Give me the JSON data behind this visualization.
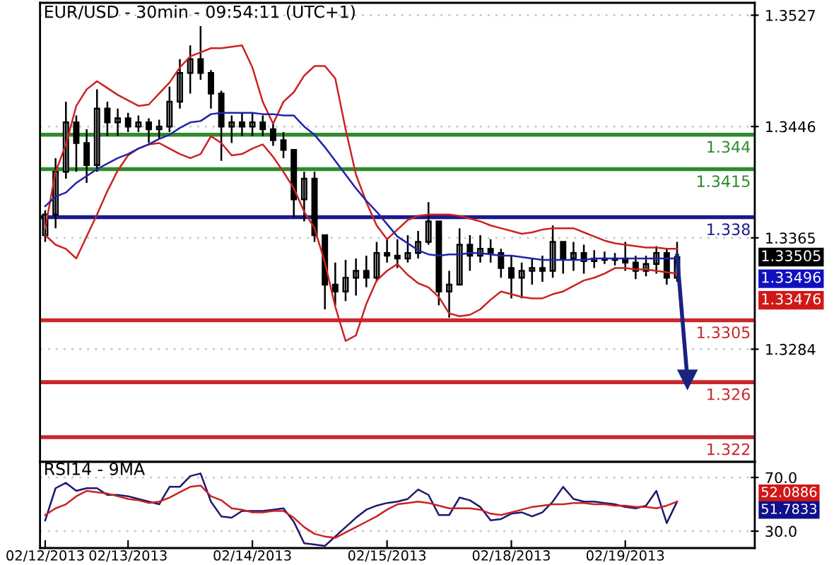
{
  "chart_data": [
    {
      "type": "candlestick",
      "title": "EUR/USD - 30min - 09:54:11 (UTC+1)",
      "categories": [
        null,
        null,
        null,
        null,
        null,
        null,
        null,
        null,
        null,
        null,
        null,
        null,
        null,
        null,
        null,
        null,
        null,
        null,
        null,
        null,
        null,
        null,
        null,
        null,
        null,
        null,
        null,
        null,
        null,
        null,
        null,
        null,
        null,
        null,
        null,
        null,
        null,
        null,
        null,
        null,
        null,
        null,
        null,
        null,
        null,
        null,
        null,
        null,
        null,
        null,
        null,
        null,
        null,
        null,
        null,
        null,
        null,
        null,
        null,
        null,
        null,
        null,
        null,
        null,
        null,
        null,
        null,
        null,
        null
      ],
      "ohlc": [
        [
          1.3367,
          1.3385,
          1.3362,
          1.3382
        ],
        [
          1.3382,
          1.3423,
          1.3372,
          1.3413
        ],
        [
          1.3413,
          1.3464,
          1.3408,
          1.3449
        ],
        [
          1.3449,
          1.3454,
          1.3413,
          1.3434
        ],
        [
          1.3434,
          1.3444,
          1.3405,
          1.3418
        ],
        [
          1.3418,
          1.3473,
          1.3413,
          1.3459
        ],
        [
          1.3459,
          1.3464,
          1.3439,
          1.3449
        ],
        [
          1.3449,
          1.3459,
          1.3439,
          1.3452
        ],
        [
          1.3452,
          1.3456,
          1.3442,
          1.3446
        ],
        [
          1.3446,
          1.3454,
          1.3442,
          1.3449
        ],
        [
          1.3449,
          1.3452,
          1.3434,
          1.3444
        ],
        [
          1.3444,
          1.3451,
          1.3437,
          1.3446
        ],
        [
          1.3446,
          1.3475,
          1.3442,
          1.3464
        ],
        [
          1.3464,
          1.3495,
          1.3459,
          1.3485
        ],
        [
          1.3485,
          1.3505,
          1.347,
          1.3495
        ],
        [
          1.3495,
          1.3519,
          1.348,
          1.3485
        ],
        [
          1.3485,
          1.3487,
          1.3459,
          1.347
        ],
        [
          1.347,
          1.3472,
          1.3421,
          1.3446
        ],
        [
          1.3446,
          1.3454,
          1.3434,
          1.3449
        ],
        [
          1.3449,
          1.3456,
          1.3439,
          1.3446
        ],
        [
          1.3446,
          1.3456,
          1.3439,
          1.3449
        ],
        [
          1.3449,
          1.3454,
          1.3439,
          1.3444
        ],
        [
          1.3444,
          1.3449,
          1.3432,
          1.3436
        ],
        [
          1.3436,
          1.3442,
          1.3423,
          1.3429
        ],
        [
          1.3429,
          1.3429,
          1.338,
          1.3393
        ],
        [
          1.3393,
          1.3413,
          1.3377,
          1.3408
        ],
        [
          1.3408,
          1.3413,
          1.3362,
          1.3367
        ],
        [
          1.3367,
          1.3367,
          1.3313,
          1.3331
        ],
        [
          1.3331,
          1.3347,
          1.3316,
          1.3326
        ],
        [
          1.3326,
          1.3349,
          1.3319,
          1.3336
        ],
        [
          1.3336,
          1.335,
          1.3323,
          1.3341
        ],
        [
          1.3341,
          1.3352,
          1.3329,
          1.3336
        ],
        [
          1.3336,
          1.3362,
          1.3333,
          1.3354
        ],
        [
          1.3354,
          1.3364,
          1.3347,
          1.3352
        ],
        [
          1.3352,
          1.3364,
          1.3343,
          1.335
        ],
        [
          1.335,
          1.3367,
          1.3347,
          1.3354
        ],
        [
          1.3354,
          1.337,
          1.335,
          1.3362
        ],
        [
          1.3362,
          1.3391,
          1.336,
          1.3377
        ],
        [
          1.3377,
          1.3377,
          1.3316,
          1.3326
        ],
        [
          1.3326,
          1.3341,
          1.3307,
          1.3331
        ],
        [
          1.3331,
          1.3372,
          1.3331,
          1.336
        ],
        [
          1.336,
          1.3367,
          1.3341,
          1.3352
        ],
        [
          1.3352,
          1.3367,
          1.3347,
          1.3357
        ],
        [
          1.3357,
          1.3364,
          1.3347,
          1.3354
        ],
        [
          1.3354,
          1.3357,
          1.3336,
          1.3343
        ],
        [
          1.3343,
          1.3352,
          1.3321,
          1.3336
        ],
        [
          1.3336,
          1.3347,
          1.3321,
          1.3341
        ],
        [
          1.3341,
          1.335,
          1.3331,
          1.3343
        ],
        [
          1.3343,
          1.3352,
          1.3333,
          1.3341
        ],
        [
          1.3341,
          1.3374,
          1.3336,
          1.3362
        ],
        [
          1.3362,
          1.3362,
          1.3339,
          1.335
        ],
        [
          1.335,
          1.3362,
          1.3341,
          1.3354
        ],
        [
          1.3354,
          1.336,
          1.3339,
          1.3348
        ],
        [
          1.3348,
          1.3356,
          1.3343,
          1.335
        ],
        [
          1.335,
          1.3355,
          1.3346,
          1.3349
        ],
        [
          1.3349,
          1.3354,
          1.3345,
          1.335
        ],
        [
          1.335,
          1.3362,
          1.3341,
          1.3347
        ],
        [
          1.3347,
          1.3352,
          1.3335,
          1.3341
        ],
        [
          1.3341,
          1.3352,
          1.3337,
          1.3346
        ],
        [
          1.3346,
          1.3359,
          1.3339,
          1.3354
        ],
        [
          1.3354,
          1.3357,
          1.3331,
          1.3336
        ],
        [
          1.3336,
          1.3362,
          1.3333,
          1.3351
        ],
        null,
        null,
        null,
        null,
        null,
        null,
        null
      ],
      "series": [
        {
          "type": "line",
          "color": "#cc2222",
          "values": [
            1.3372,
            1.3413,
            1.3433,
            1.3461,
            1.3473,
            1.3479,
            1.3474,
            1.3469,
            1.3465,
            1.3461,
            1.3462,
            1.347,
            1.3478,
            1.3489,
            1.3497,
            1.35,
            1.3503,
            1.3503,
            1.3504,
            1.3505,
            1.3489,
            1.3464,
            1.3448,
            1.3464,
            1.3471,
            1.3483,
            1.349,
            1.349,
            1.3481,
            1.3444,
            1.3411,
            1.3391,
            1.3374,
            1.3364,
            1.3371,
            1.3378,
            1.3381,
            1.3382,
            1.3382,
            1.3382,
            1.3381,
            1.3379,
            1.3377,
            1.3374,
            1.3372,
            1.337,
            1.3368,
            1.3369,
            1.3371,
            1.3372,
            1.3372,
            1.3372,
            1.3369,
            1.3366,
            1.3363,
            1.3361,
            1.336,
            1.3359,
            1.3358,
            1.3358,
            1.3357,
            1.3357,
            null,
            null,
            null,
            null,
            null,
            null,
            null
          ]
        },
        {
          "type": "line",
          "color": "#cc2222",
          "values": [
            1.3367,
            1.336,
            1.3357,
            1.335,
            1.3366,
            1.3382,
            1.3399,
            1.3414,
            1.3425,
            1.343,
            1.3433,
            1.3434,
            1.343,
            1.3426,
            1.3423,
            1.3426,
            1.3439,
            1.3434,
            1.3425,
            1.3426,
            1.343,
            1.3433,
            1.3424,
            1.3413,
            1.3401,
            1.3384,
            1.3372,
            1.3347,
            1.3315,
            1.329,
            1.3294,
            1.3317,
            1.3334,
            1.3341,
            1.3346,
            1.3338,
            1.3332,
            1.3329,
            1.3322,
            1.331,
            1.3308,
            1.3309,
            1.3313,
            1.332,
            1.3326,
            1.3324,
            1.3322,
            1.3321,
            1.3321,
            1.3324,
            1.3326,
            1.333,
            1.3334,
            1.3336,
            1.3339,
            1.3343,
            1.3343,
            1.3342,
            1.3342,
            1.3341,
            1.334,
            1.3339,
            null,
            null,
            null,
            null,
            null,
            null,
            null
          ]
        },
        {
          "type": "line",
          "color": "#2222aa",
          "values": [
            1.3388,
            1.3395,
            1.3398,
            1.3405,
            1.341,
            1.3415,
            1.3419,
            1.3423,
            1.3426,
            1.343,
            1.3433,
            1.3437,
            1.344,
            1.3445,
            1.3449,
            1.345,
            1.3455,
            1.3456,
            1.3456,
            1.3456,
            1.3456,
            1.3455,
            1.3455,
            1.3454,
            1.3454,
            1.3446,
            1.344,
            1.3431,
            1.3421,
            1.3411,
            1.3401,
            1.3392,
            1.3384,
            1.3375,
            1.3366,
            1.3361,
            1.3356,
            1.3353,
            1.3352,
            1.3353,
            1.3353,
            1.3354,
            1.3354,
            1.3353,
            1.3352,
            1.3352,
            1.3351,
            1.335,
            1.3349,
            1.3349,
            1.3349,
            1.3349,
            1.3349,
            1.335,
            1.335,
            1.335,
            1.335,
            1.335,
            1.335,
            1.335,
            1.335,
            1.335,
            null,
            null,
            null,
            null,
            null,
            null,
            null
          ]
        },
        {
          "type": "line",
          "color": "#1a237e",
          "marker": "triangle",
          "values": [
            null,
            null,
            null,
            null,
            null,
            null,
            null,
            null,
            null,
            null,
            null,
            null,
            null,
            null,
            null,
            null,
            null,
            null,
            null,
            null,
            null,
            null,
            null,
            null,
            null,
            null,
            null,
            null,
            null,
            null,
            null,
            null,
            null,
            null,
            null,
            null,
            null,
            null,
            null,
            null,
            null,
            null,
            null,
            null,
            null,
            null,
            null,
            null,
            null,
            null,
            null,
            null,
            null,
            null,
            null,
            null,
            null,
            null,
            null,
            null,
            null,
            1.3352,
            1.3262,
            null,
            null,
            null,
            null,
            null,
            null
          ]
        }
      ],
      "ref_lines": [
        {
          "axis": "y",
          "value": 1.344,
          "label": "1.344",
          "color": "#2e8b2e"
        },
        {
          "axis": "y",
          "value": 1.3415,
          "label": "1.3415",
          "color": "#2e8b2e"
        },
        {
          "axis": "y",
          "value": 1.338,
          "label": "1.338",
          "color": "#1a1a8c"
        },
        {
          "axis": "y",
          "value": 1.3305,
          "label": "1.3305",
          "color": "#c8282d"
        },
        {
          "axis": "y",
          "value": 1.326,
          "label": "1.326",
          "color": "#c8282d"
        },
        {
          "axis": "y",
          "value": 1.322,
          "label": "1.322",
          "color": "#c8282d"
        }
      ],
      "annotations": [
        "1.33505",
        "1.33496",
        "1.33476"
      ],
      "ylim": [
        1.3202,
        1.3536
      ],
      "yticks": [
        1.3527,
        1.3446,
        1.3365,
        1.3284
      ],
      "grid": "y",
      "tick_labels": "y"
    },
    {
      "type": "line",
      "title": "RSI14 - 9MA",
      "categories": [
        "02/12/2013",
        null,
        null,
        null,
        null,
        null,
        null,
        null,
        "02/13/2013",
        null,
        null,
        null,
        null,
        null,
        null,
        null,
        null,
        null,
        null,
        null,
        "02/14/2013",
        null,
        null,
        null,
        null,
        null,
        null,
        null,
        null,
        null,
        null,
        null,
        null,
        "02/15/2013",
        null,
        null,
        null,
        null,
        null,
        null,
        null,
        null,
        null,
        null,
        null,
        "02/18/2013",
        null,
        null,
        null,
        null,
        null,
        null,
        null,
        null,
        null,
        null,
        "02/19/2013",
        null,
        null,
        null,
        null,
        null,
        null,
        null,
        null,
        null,
        null,
        null,
        null
      ],
      "series": [
        {
          "color": "#1a1a6e",
          "values": [
            38,
            62,
            66,
            60,
            62,
            62,
            57,
            57,
            56,
            54,
            52,
            50,
            63,
            63,
            71,
            73,
            52,
            41,
            40,
            45,
            45,
            45,
            46,
            47,
            37,
            21,
            20,
            19,
            26,
            33,
            40,
            46,
            49,
            51,
            52,
            54,
            61,
            57,
            42,
            42,
            55,
            53,
            48,
            38,
            39,
            43,
            44,
            41,
            44,
            52,
            63,
            54,
            52,
            52,
            51,
            50,
            48,
            47,
            49,
            60,
            36,
            52,
            null,
            null,
            null,
            null,
            null,
            null,
            null
          ]
        },
        {
          "color": "#cc2222",
          "values": [
            42,
            47,
            50,
            56,
            60,
            59,
            58,
            56,
            54,
            53,
            51,
            52,
            55,
            59,
            63,
            64,
            56,
            53,
            47,
            46,
            44,
            44,
            45,
            45,
            40,
            33,
            28,
            26,
            25,
            29,
            33,
            37,
            41,
            46,
            50,
            51,
            52,
            51,
            49,
            47,
            47,
            47,
            46,
            43,
            42,
            44,
            46,
            48,
            49,
            50,
            50,
            51,
            51,
            50,
            50,
            49,
            49,
            48,
            48,
            47,
            49,
            52,
            null,
            null,
            null,
            null,
            null,
            null,
            null
          ]
        }
      ],
      "annotations": [
        "52.0886",
        "51.7833"
      ],
      "ylim": [
        17.4,
        81.6
      ],
      "yticks": [
        {
          "value": 70,
          "label": "70.0"
        },
        {
          "value": 30,
          "label": "30.0"
        }
      ],
      "grid": "y"
    }
  ]
}
